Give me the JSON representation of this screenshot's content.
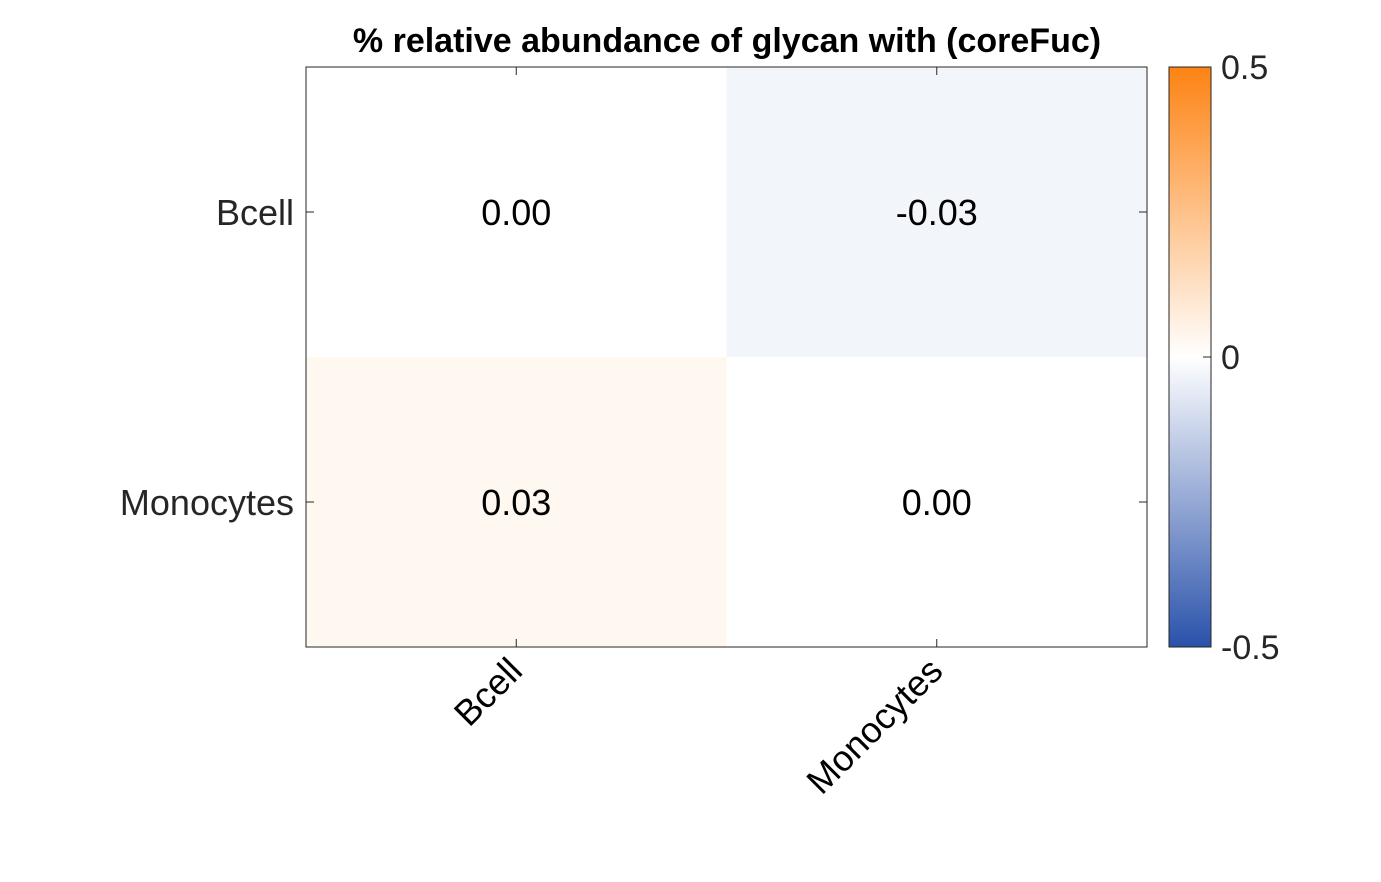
{
  "chart_data": {
    "type": "heatmap",
    "title": "% relative abundance of glycan with (coreFuc)",
    "x_categories": [
      "Bcell",
      "Monocytes"
    ],
    "y_categories": [
      "Bcell",
      "Monocytes"
    ],
    "values": [
      [
        0.0,
        -0.03
      ],
      [
        0.03,
        0.0
      ]
    ],
    "cell_labels": [
      [
        "0.00",
        "-0.03"
      ],
      [
        "0.03",
        "0.00"
      ]
    ],
    "colorbar": {
      "range": [
        -0.5,
        0.5
      ],
      "ticks": [
        0.5,
        0,
        -0.5
      ],
      "tick_labels": [
        "0.5",
        "0",
        "-0.5"
      ],
      "colors": {
        "low": "#2a52aa",
        "mid": "#ffffff",
        "high": "#fd8313"
      }
    }
  }
}
